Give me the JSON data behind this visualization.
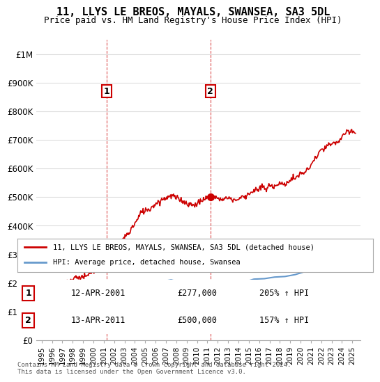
{
  "title": "11, LLYS LE BREOS, MAYALS, SWANSEA, SA3 5DL",
  "subtitle": "Price paid vs. HM Land Registry's House Price Index (HPI)",
  "xlabel": "",
  "ylabel": "",
  "ylim": [
    0,
    1050000
  ],
  "yticks": [
    0,
    100000,
    200000,
    300000,
    400000,
    500000,
    600000,
    700000,
    800000,
    900000,
    1000000
  ],
  "ytick_labels": [
    "£0",
    "£100K",
    "£200K",
    "£300K",
    "£400K",
    "£500K",
    "£600K",
    "£700K",
    "£800K",
    "£900K",
    "£1M"
  ],
  "sale1_year": 2001.29,
  "sale1_price": 277000,
  "sale1_label": "1",
  "sale1_date": "12-APR-2001",
  "sale1_pct": "205%",
  "sale2_year": 2011.29,
  "sale2_price": 500000,
  "sale2_label": "2",
  "sale2_date": "13-APR-2011",
  "sale2_pct": "157%",
  "line_color_property": "#cc0000",
  "line_color_hpi": "#6699cc",
  "dashed_color": "#cc0000",
  "marker_color": "#cc0000",
  "note": "Contains HM Land Registry data © Crown copyright and database right 2024.\nThis data is licensed under the Open Government Licence v3.0.",
  "legend_label1": "11, LLYS LE BREOS, MAYALS, SWANSEA, SA3 5DL (detached house)",
  "legend_label2": "HPI: Average price, detached house, Swansea",
  "background_color": "#ffffff",
  "grid_color": "#dddddd"
}
